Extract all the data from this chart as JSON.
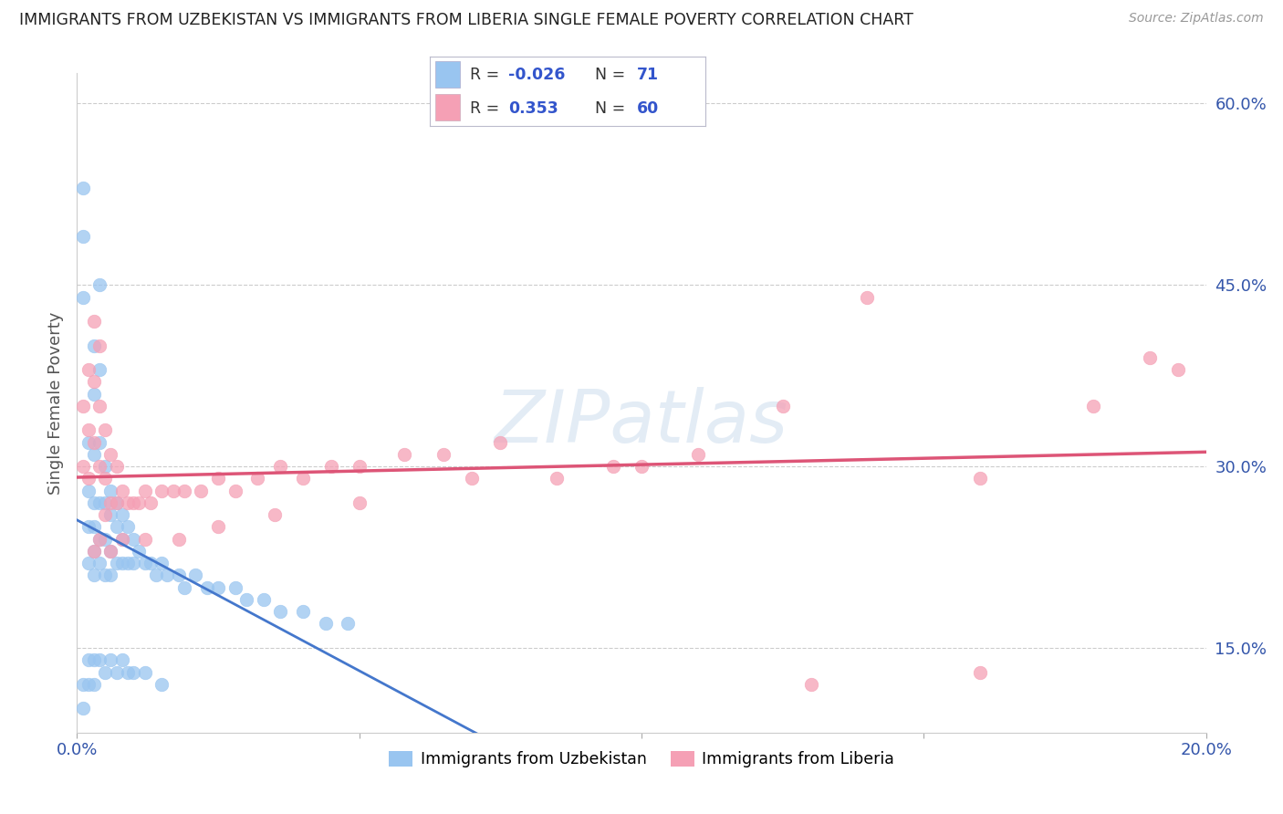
{
  "title": "IMMIGRANTS FROM UZBEKISTAN VS IMMIGRANTS FROM LIBERIA SINGLE FEMALE POVERTY CORRELATION CHART",
  "source": "Source: ZipAtlas.com",
  "ylabel": "Single Female Poverty",
  "color_uzbekistan": "#99C5F0",
  "color_liberia": "#F5A0B5",
  "trend_uzbekistan_solid": "#4477CC",
  "trend_uzbekistan_dash": "#88BBEE",
  "trend_liberia": "#DD5577",
  "watermark": "ZIPatlas",
  "background": "#FFFFFF",
  "grid_color": "#CCCCCC",
  "uzbekistan_x": [
    0.001,
    0.001,
    0.001,
    0.002,
    0.002,
    0.002,
    0.002,
    0.003,
    0.003,
    0.003,
    0.003,
    0.003,
    0.003,
    0.003,
    0.004,
    0.004,
    0.004,
    0.004,
    0.004,
    0.004,
    0.005,
    0.005,
    0.005,
    0.005,
    0.006,
    0.006,
    0.006,
    0.006,
    0.007,
    0.007,
    0.007,
    0.008,
    0.008,
    0.008,
    0.009,
    0.009,
    0.01,
    0.01,
    0.011,
    0.012,
    0.013,
    0.014,
    0.015,
    0.016,
    0.018,
    0.019,
    0.021,
    0.023,
    0.025,
    0.028,
    0.03,
    0.033,
    0.036,
    0.04,
    0.044,
    0.048,
    0.001,
    0.001,
    0.002,
    0.002,
    0.003,
    0.003,
    0.004,
    0.005,
    0.006,
    0.007,
    0.008,
    0.009,
    0.01,
    0.012,
    0.015
  ],
  "uzbekistan_y": [
    0.53,
    0.49,
    0.44,
    0.32,
    0.28,
    0.25,
    0.22,
    0.4,
    0.36,
    0.31,
    0.27,
    0.25,
    0.23,
    0.21,
    0.45,
    0.38,
    0.32,
    0.27,
    0.24,
    0.22,
    0.3,
    0.27,
    0.24,
    0.21,
    0.28,
    0.26,
    0.23,
    0.21,
    0.27,
    0.25,
    0.22,
    0.26,
    0.24,
    0.22,
    0.25,
    0.22,
    0.24,
    0.22,
    0.23,
    0.22,
    0.22,
    0.21,
    0.22,
    0.21,
    0.21,
    0.2,
    0.21,
    0.2,
    0.2,
    0.2,
    0.19,
    0.19,
    0.18,
    0.18,
    0.17,
    0.17,
    0.12,
    0.1,
    0.14,
    0.12,
    0.14,
    0.12,
    0.14,
    0.13,
    0.14,
    0.13,
    0.14,
    0.13,
    0.13,
    0.13,
    0.12
  ],
  "liberia_x": [
    0.001,
    0.001,
    0.002,
    0.002,
    0.002,
    0.003,
    0.003,
    0.003,
    0.004,
    0.004,
    0.004,
    0.005,
    0.005,
    0.005,
    0.006,
    0.006,
    0.007,
    0.007,
    0.008,
    0.009,
    0.01,
    0.011,
    0.012,
    0.013,
    0.015,
    0.017,
    0.019,
    0.022,
    0.025,
    0.028,
    0.032,
    0.036,
    0.04,
    0.045,
    0.05,
    0.058,
    0.065,
    0.075,
    0.085,
    0.095,
    0.11,
    0.125,
    0.14,
    0.16,
    0.18,
    0.195,
    0.003,
    0.004,
    0.006,
    0.008,
    0.012,
    0.018,
    0.025,
    0.035,
    0.05,
    0.07,
    0.1,
    0.13,
    0.16,
    0.19
  ],
  "liberia_y": [
    0.35,
    0.3,
    0.38,
    0.33,
    0.29,
    0.42,
    0.37,
    0.32,
    0.4,
    0.35,
    0.3,
    0.33,
    0.29,
    0.26,
    0.31,
    0.27,
    0.3,
    0.27,
    0.28,
    0.27,
    0.27,
    0.27,
    0.28,
    0.27,
    0.28,
    0.28,
    0.28,
    0.28,
    0.29,
    0.28,
    0.29,
    0.3,
    0.29,
    0.3,
    0.3,
    0.31,
    0.31,
    0.32,
    0.29,
    0.3,
    0.31,
    0.35,
    0.44,
    0.29,
    0.35,
    0.38,
    0.23,
    0.24,
    0.23,
    0.24,
    0.24,
    0.24,
    0.25,
    0.26,
    0.27,
    0.29,
    0.3,
    0.12,
    0.13,
    0.39
  ],
  "xlim": [
    0.0,
    0.2
  ],
  "ylim": [
    0.08,
    0.625
  ],
  "yticks": [
    0.15,
    0.3,
    0.45,
    0.6
  ],
  "ytick_labels": [
    "15.0%",
    "30.0%",
    "45.0%",
    "60.0%"
  ],
  "xticks": [
    0.0,
    0.05,
    0.1,
    0.15,
    0.2
  ],
  "xtick_labels": [
    "0.0%",
    "",
    "",
    "",
    "20.0%"
  ]
}
